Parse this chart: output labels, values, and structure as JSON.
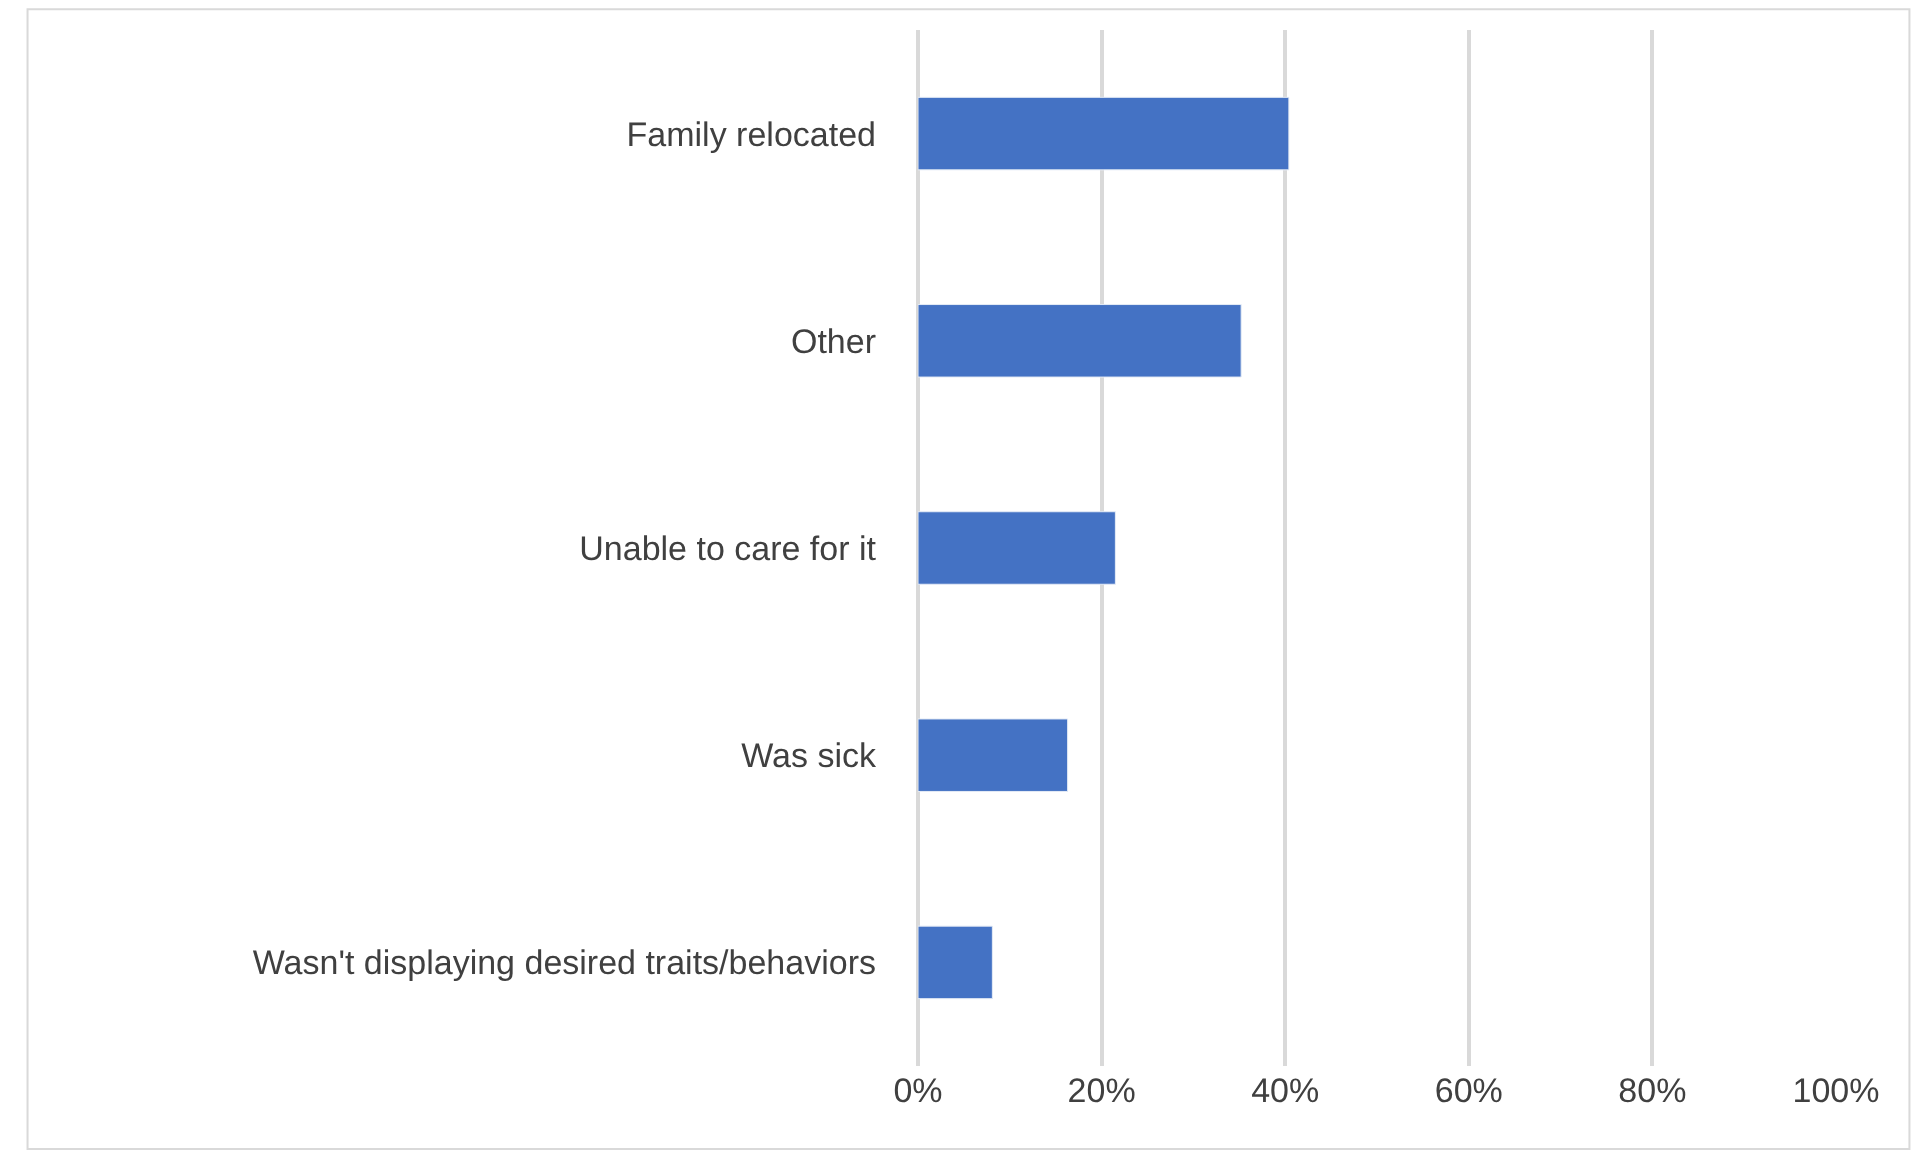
{
  "chart_data": {
    "type": "bar",
    "orientation": "horizontal",
    "categories": [
      "Family relocated",
      "Other",
      "Unable to care for it",
      "Was sick",
      "Wasn't displaying desired traits/behaviors"
    ],
    "values": [
      40.4,
      35.2,
      21.5,
      16.3,
      8.1
    ],
    "color": "#4472c4",
    "xlim": [
      0,
      100
    ],
    "xticks": [
      {
        "value": 0,
        "label": "0%"
      },
      {
        "value": 20,
        "label": "20%"
      },
      {
        "value": 40,
        "label": "40%"
      },
      {
        "value": 60,
        "label": "60%"
      },
      {
        "value": 80,
        "label": "80%"
      },
      {
        "value": 100,
        "label": "100%"
      }
    ],
    "grid": "x"
  }
}
